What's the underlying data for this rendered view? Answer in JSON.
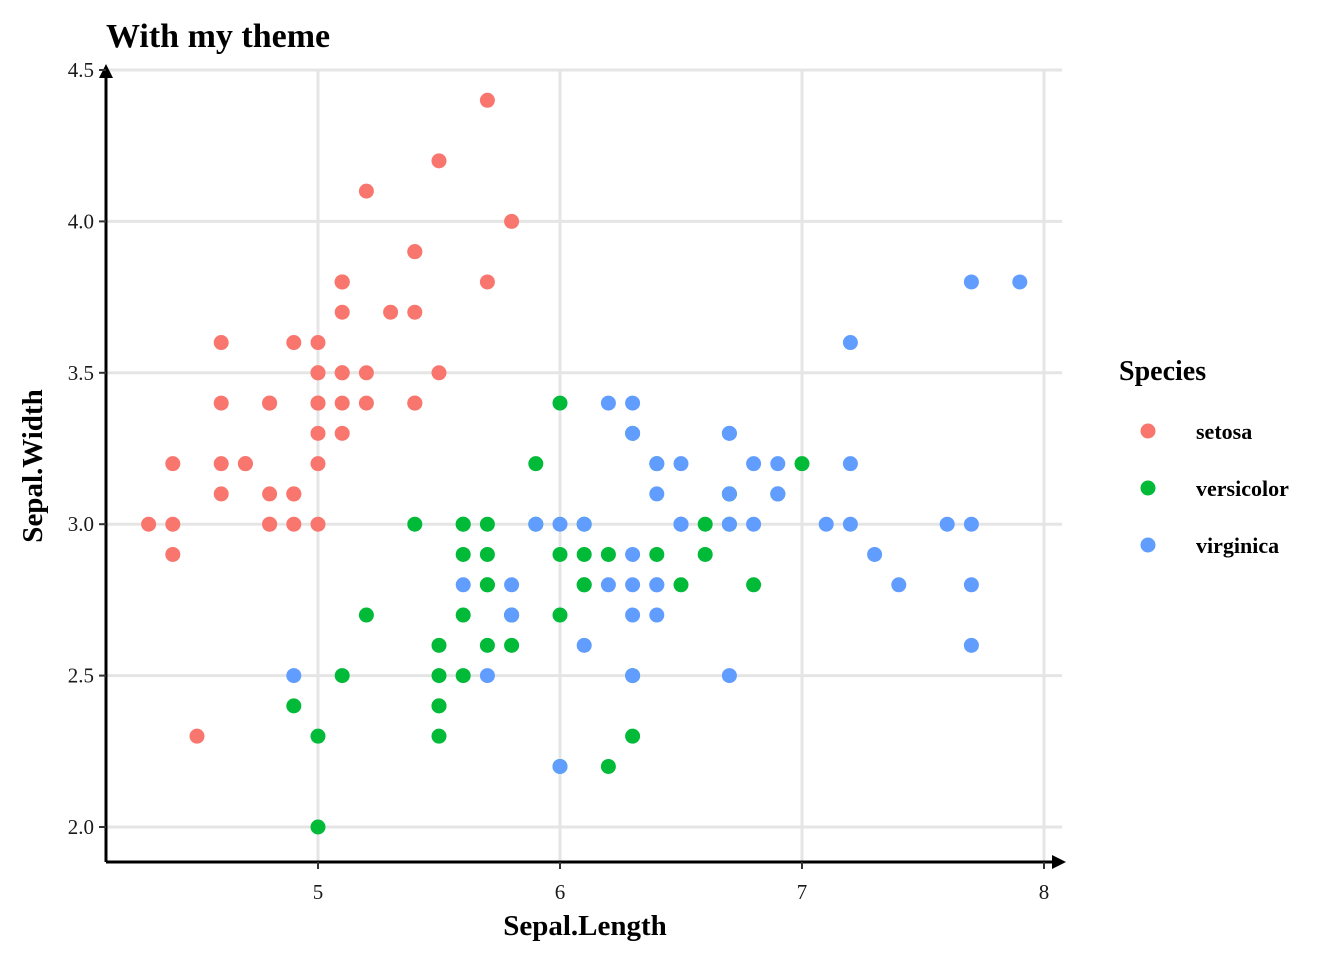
{
  "chart_data": {
    "type": "scatter",
    "title": "With my theme",
    "xlabel": "Sepal.Length",
    "ylabel": "Sepal.Width",
    "xlim": [
      4.2,
      8.0
    ],
    "ylim": [
      1.88,
      4.5
    ],
    "x_ticks": [
      "5",
      "6",
      "7",
      "8"
    ],
    "y_ticks": [
      "2.0",
      "2.5",
      "3.0",
      "3.5",
      "4.0",
      "4.5"
    ],
    "grid": true,
    "legend": {
      "title": "Species",
      "position": "right"
    },
    "series": [
      {
        "name": "setosa",
        "color": "#F8766D",
        "points": [
          [
            5.1,
            3.5
          ],
          [
            4.9,
            3.0
          ],
          [
            4.7,
            3.2
          ],
          [
            4.6,
            3.1
          ],
          [
            5.0,
            3.6
          ],
          [
            5.4,
            3.9
          ],
          [
            4.6,
            3.4
          ],
          [
            5.0,
            3.4
          ],
          [
            4.4,
            2.9
          ],
          [
            4.9,
            3.1
          ],
          [
            5.4,
            3.7
          ],
          [
            4.8,
            3.4
          ],
          [
            4.8,
            3.0
          ],
          [
            4.3,
            3.0
          ],
          [
            5.8,
            4.0
          ],
          [
            5.7,
            4.4
          ],
          [
            5.4,
            3.9
          ],
          [
            5.1,
            3.5
          ],
          [
            5.7,
            3.8
          ],
          [
            5.1,
            3.8
          ],
          [
            5.4,
            3.4
          ],
          [
            5.1,
            3.7
          ],
          [
            4.6,
            3.6
          ],
          [
            5.1,
            3.3
          ],
          [
            4.8,
            3.4
          ],
          [
            5.0,
            3.0
          ],
          [
            5.0,
            3.4
          ],
          [
            5.2,
            3.5
          ],
          [
            5.2,
            3.4
          ],
          [
            4.7,
            3.2
          ],
          [
            4.8,
            3.1
          ],
          [
            5.4,
            3.4
          ],
          [
            5.2,
            4.1
          ],
          [
            5.5,
            4.2
          ],
          [
            4.9,
            3.1
          ],
          [
            5.0,
            3.2
          ],
          [
            5.5,
            3.5
          ],
          [
            4.9,
            3.6
          ],
          [
            4.4,
            3.0
          ],
          [
            5.1,
            3.4
          ],
          [
            5.0,
            3.5
          ],
          [
            4.5,
            2.3
          ],
          [
            4.4,
            3.2
          ],
          [
            5.0,
            3.5
          ],
          [
            5.1,
            3.8
          ],
          [
            4.8,
            3.0
          ],
          [
            5.1,
            3.8
          ],
          [
            4.6,
            3.2
          ],
          [
            5.3,
            3.7
          ],
          [
            5.0,
            3.3
          ]
        ]
      },
      {
        "name": "versicolor",
        "color": "#00BA38",
        "points": [
          [
            7.0,
            3.2
          ],
          [
            6.4,
            3.2
          ],
          [
            6.9,
            3.1
          ],
          [
            5.5,
            2.3
          ],
          [
            6.5,
            2.8
          ],
          [
            5.7,
            2.8
          ],
          [
            6.3,
            3.3
          ],
          [
            4.9,
            2.4
          ],
          [
            6.6,
            2.9
          ],
          [
            5.2,
            2.7
          ],
          [
            5.0,
            2.0
          ],
          [
            5.9,
            3.0
          ],
          [
            6.0,
            2.2
          ],
          [
            6.1,
            2.9
          ],
          [
            5.6,
            2.9
          ],
          [
            6.7,
            3.1
          ],
          [
            5.6,
            3.0
          ],
          [
            5.8,
            2.7
          ],
          [
            6.2,
            2.2
          ],
          [
            5.6,
            2.5
          ],
          [
            5.9,
            3.2
          ],
          [
            6.1,
            2.8
          ],
          [
            6.3,
            2.5
          ],
          [
            6.1,
            2.8
          ],
          [
            6.4,
            2.9
          ],
          [
            6.6,
            3.0
          ],
          [
            6.8,
            2.8
          ],
          [
            6.7,
            3.0
          ],
          [
            6.0,
            2.9
          ],
          [
            5.7,
            2.6
          ],
          [
            5.5,
            2.4
          ],
          [
            5.5,
            2.4
          ],
          [
            5.8,
            2.7
          ],
          [
            6.0,
            2.7
          ],
          [
            5.4,
            3.0
          ],
          [
            6.0,
            3.4
          ],
          [
            6.7,
            3.1
          ],
          [
            6.3,
            2.3
          ],
          [
            5.6,
            3.0
          ],
          [
            5.5,
            2.5
          ],
          [
            5.5,
            2.6
          ],
          [
            6.1,
            3.0
          ],
          [
            5.8,
            2.6
          ],
          [
            5.0,
            2.3
          ],
          [
            5.6,
            2.7
          ],
          [
            5.7,
            3.0
          ],
          [
            5.7,
            2.9
          ],
          [
            6.2,
            2.9
          ],
          [
            5.1,
            2.5
          ],
          [
            5.7,
            2.8
          ]
        ]
      },
      {
        "name": "virginica",
        "color": "#619CFF",
        "points": [
          [
            6.3,
            3.3
          ],
          [
            5.8,
            2.7
          ],
          [
            7.1,
            3.0
          ],
          [
            6.3,
            2.9
          ],
          [
            6.5,
            3.0
          ],
          [
            7.6,
            3.0
          ],
          [
            4.9,
            2.5
          ],
          [
            7.3,
            2.9
          ],
          [
            6.7,
            2.5
          ],
          [
            7.2,
            3.6
          ],
          [
            6.5,
            3.2
          ],
          [
            6.4,
            2.7
          ],
          [
            6.8,
            3.0
          ],
          [
            5.7,
            2.5
          ],
          [
            5.8,
            2.8
          ],
          [
            6.4,
            3.2
          ],
          [
            6.5,
            3.0
          ],
          [
            7.7,
            3.8
          ],
          [
            7.7,
            2.6
          ],
          [
            6.0,
            2.2
          ],
          [
            6.9,
            3.2
          ],
          [
            5.6,
            2.8
          ],
          [
            7.7,
            2.8
          ],
          [
            6.3,
            2.7
          ],
          [
            6.7,
            3.3
          ],
          [
            7.2,
            3.2
          ],
          [
            6.2,
            2.8
          ],
          [
            6.1,
            3.0
          ],
          [
            6.4,
            2.8
          ],
          [
            7.2,
            3.0
          ],
          [
            7.4,
            2.8
          ],
          [
            7.9,
            3.8
          ],
          [
            6.4,
            2.8
          ],
          [
            6.3,
            2.8
          ],
          [
            6.1,
            2.6
          ],
          [
            7.7,
            3.0
          ],
          [
            6.3,
            3.4
          ],
          [
            6.4,
            3.1
          ],
          [
            6.0,
            3.0
          ],
          [
            6.9,
            3.1
          ],
          [
            6.7,
            3.1
          ],
          [
            6.9,
            3.1
          ],
          [
            5.8,
            2.7
          ],
          [
            6.8,
            3.2
          ],
          [
            6.7,
            3.3
          ],
          [
            6.7,
            3.0
          ],
          [
            6.3,
            2.5
          ],
          [
            6.5,
            3.0
          ],
          [
            6.2,
            3.4
          ],
          [
            5.9,
            3.0
          ]
        ]
      }
    ]
  }
}
